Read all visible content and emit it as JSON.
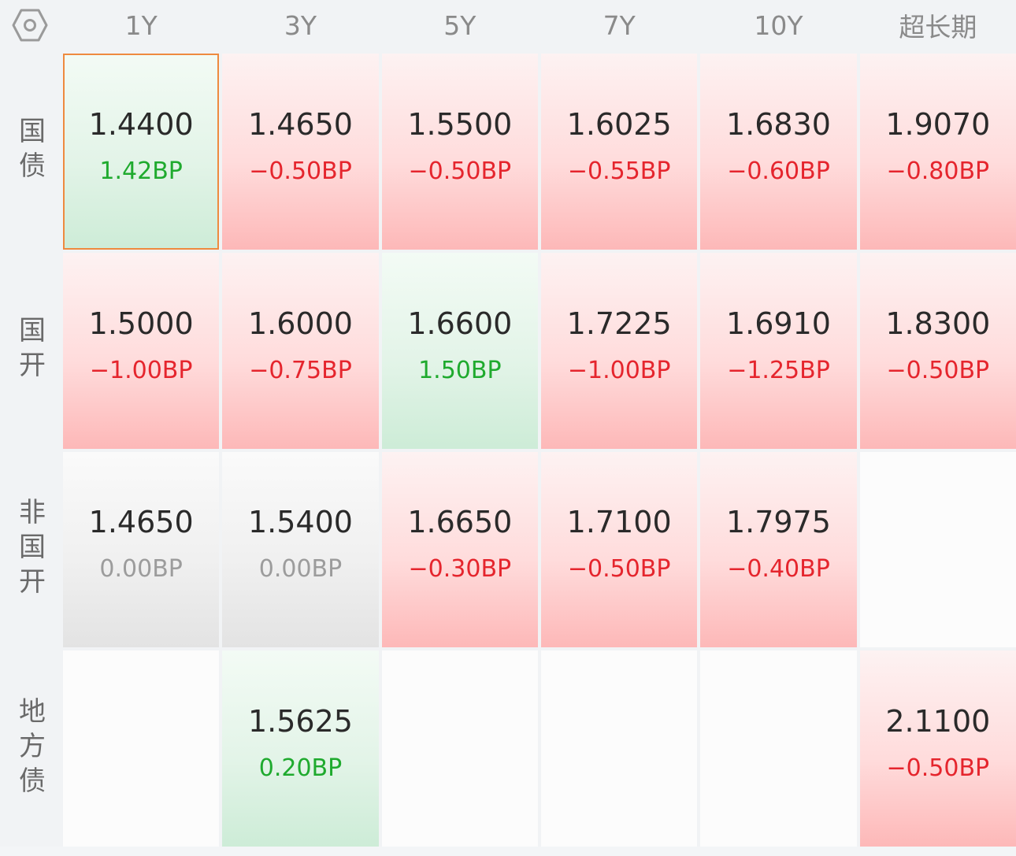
{
  "columns": [
    "1Y",
    "3Y",
    "5Y",
    "7Y",
    "10Y",
    "超长期"
  ],
  "rows": [
    {
      "label": "国债",
      "cells": [
        {
          "rate": "1.4400",
          "change": "1.42BP",
          "trend": "up"
        },
        {
          "rate": "1.4650",
          "change": "−0.50BP",
          "trend": "down"
        },
        {
          "rate": "1.5500",
          "change": "−0.50BP",
          "trend": "down"
        },
        {
          "rate": "1.6025",
          "change": "−0.55BP",
          "trend": "down"
        },
        {
          "rate": "1.6830",
          "change": "−0.60BP",
          "trend": "down"
        },
        {
          "rate": "1.9070",
          "change": "−0.80BP",
          "trend": "down"
        }
      ]
    },
    {
      "label": "国开",
      "cells": [
        {
          "rate": "1.5000",
          "change": "−1.00BP",
          "trend": "down"
        },
        {
          "rate": "1.6000",
          "change": "−0.75BP",
          "trend": "down"
        },
        {
          "rate": "1.6600",
          "change": "1.50BP",
          "trend": "up"
        },
        {
          "rate": "1.7225",
          "change": "−1.00BP",
          "trend": "down"
        },
        {
          "rate": "1.6910",
          "change": "−1.25BP",
          "trend": "down"
        },
        {
          "rate": "1.8300",
          "change": "−0.50BP",
          "trend": "down"
        }
      ]
    },
    {
      "label": "非国开",
      "cells": [
        {
          "rate": "1.4650",
          "change": "0.00BP",
          "trend": "flat"
        },
        {
          "rate": "1.5400",
          "change": "0.00BP",
          "trend": "flat"
        },
        {
          "rate": "1.6650",
          "change": "−0.30BP",
          "trend": "down"
        },
        {
          "rate": "1.7100",
          "change": "−0.50BP",
          "trend": "down"
        },
        {
          "rate": "1.7975",
          "change": "−0.40BP",
          "trend": "down"
        },
        null
      ]
    },
    {
      "label": "地方债",
      "cells": [
        null,
        {
          "rate": "1.5625",
          "change": "0.20BP",
          "trend": "up"
        },
        null,
        null,
        null,
        {
          "rate": "2.1100",
          "change": "−0.50BP",
          "trend": "down"
        }
      ]
    }
  ],
  "colors": {
    "down": "#e5252d",
    "up": "#1faa2e",
    "flat": "#9c9c9c",
    "selected_border": "#ee8a3f"
  },
  "corner_icon": "hexagon-settings-icon"
}
